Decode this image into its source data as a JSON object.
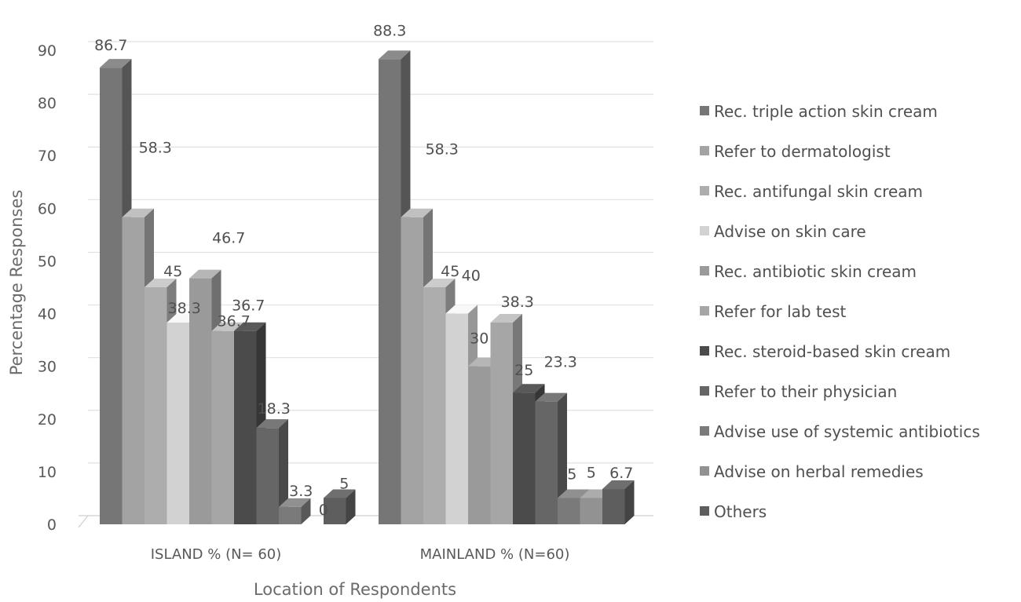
{
  "chart_data": {
    "type": "bar",
    "style": "3d-clustered-column",
    "xlabel": "Location of Respondents",
    "ylabel": "Percentage Responses",
    "ylim": [
      0,
      90
    ],
    "yticks": [
      0,
      10,
      20,
      30,
      40,
      50,
      60,
      70,
      80,
      90
    ],
    "grid": true,
    "legend_position": "right",
    "categories": [
      "ISLAND % (N= 60)",
      "MAINLAND % (N=60)"
    ],
    "series": [
      {
        "name": "Rec. triple action skin cream",
        "values": [
          86.7,
          88.3
        ],
        "color": "#767676"
      },
      {
        "name": "Refer to dermatologist",
        "values": [
          58.3,
          58.3
        ],
        "color": "#a3a3a3"
      },
      {
        "name": "Rec. antifungal skin cream",
        "values": [
          45,
          45
        ],
        "color": "#adadad"
      },
      {
        "name": "Advise on skin care",
        "values": [
          38.3,
          40
        ],
        "color": "#d2d2d2"
      },
      {
        "name": "Rec. antibiotic skin cream",
        "values": [
          46.7,
          30
        ],
        "color": "#9a9a9a"
      },
      {
        "name": "Refer for lab test",
        "values": [
          36.7,
          38.3
        ],
        "color": "#a6a6a6"
      },
      {
        "name": "Rec. steroid-based skin cream",
        "values": [
          36.7,
          25
        ],
        "color": "#4b4b4b"
      },
      {
        "name": "Refer to their physician",
        "values": [
          18.3,
          23.3
        ],
        "color": "#666666"
      },
      {
        "name": "Advise use of systemic antibiotics",
        "values": [
          3.3,
          5
        ],
        "color": "#7a7a7a"
      },
      {
        "name": "Advise on herbal remedies",
        "values": [
          0,
          5
        ],
        "color": "#929292"
      },
      {
        "name": "Others",
        "values": [
          5,
          6.7
        ],
        "color": "#5e5e5e"
      }
    ]
  }
}
